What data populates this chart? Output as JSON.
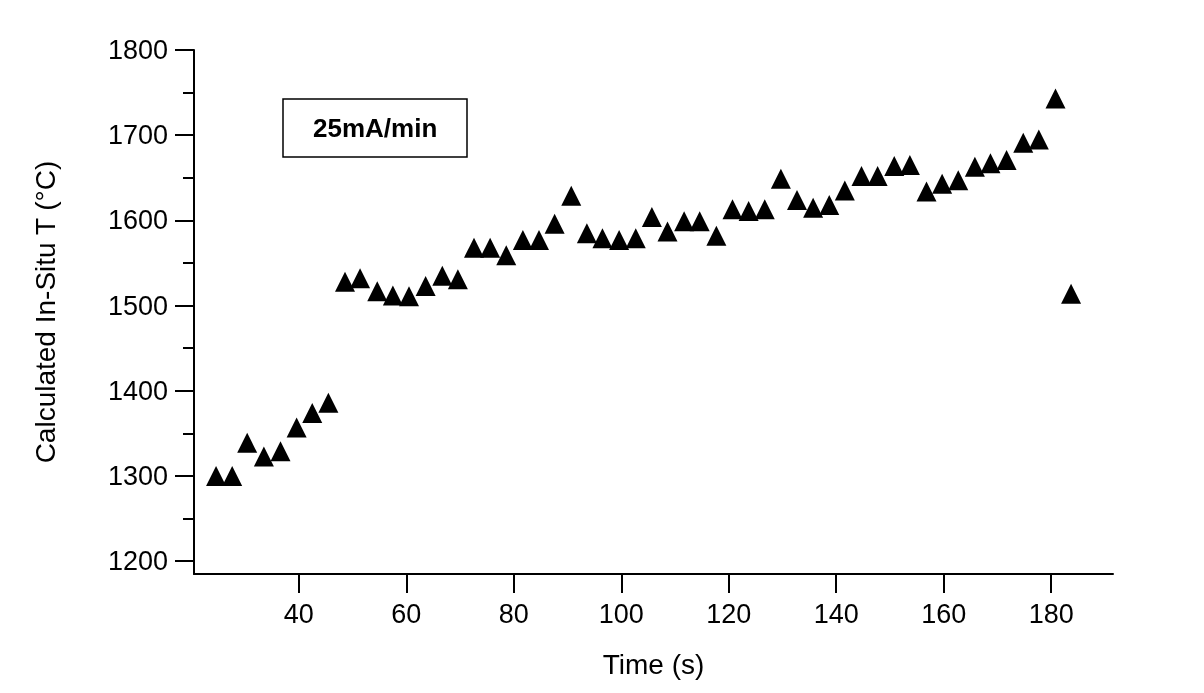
{
  "chart_data": {
    "type": "scatter",
    "xlabel": "Time (s)",
    "ylabel": "Calculated In-Situ T (°C)",
    "annotations": [
      "25mA/min"
    ],
    "x": [
      24.6,
      27.6,
      30.4,
      33.5,
      36.6,
      39.6,
      42.5,
      45.5,
      48.6,
      51.4,
      54.6,
      57.5,
      60.5,
      63.6,
      66.7,
      69.6,
      72.6,
      75.6,
      78.6,
      81.7,
      84.7,
      87.6,
      90.7,
      93.6,
      96.5,
      99.6,
      102.7,
      105.7,
      108.6,
      111.7,
      114.6,
      117.7,
      120.7,
      123.7,
      126.7,
      129.7,
      132.7,
      135.7,
      138.7,
      141.6,
      144.7,
      147.7,
      150.8,
      153.7,
      156.8,
      159.7,
      162.7,
      165.8,
      168.7,
      171.7,
      174.8,
      177.7,
      180.8,
      183.7
    ],
    "values": [
      1300,
      1300,
      1339,
      1323,
      1329,
      1357,
      1374,
      1386,
      1528,
      1532,
      1517,
      1512,
      1511,
      1523,
      1535,
      1531,
      1568,
      1568,
      1559,
      1577,
      1577,
      1596,
      1629,
      1585,
      1579,
      1577,
      1579,
      1604,
      1587,
      1599,
      1599,
      1582,
      1613,
      1611,
      1613,
      1649,
      1624,
      1615,
      1618,
      1635,
      1652,
      1652,
      1664,
      1665,
      1634,
      1643,
      1647,
      1663,
      1667,
      1671,
      1691,
      1695,
      1743,
      1514
    ],
    "color": "#000000",
    "marker": "triangle",
    "grid": false,
    "xlim": [
      20.5,
      191.5
    ],
    "xticks": [
      40,
      60,
      80,
      100,
      120,
      140,
      160,
      180
    ],
    "ylim": [
      1185,
      1800
    ],
    "yticks": [
      1200,
      {
        "value": 1250,
        "label": null
      },
      1300,
      {
        "value": 1350,
        "label": null
      },
      1400,
      {
        "value": 1450,
        "label": null
      },
      1500,
      {
        "value": 1550,
        "label": null
      },
      1600,
      {
        "value": 1650,
        "label": null
      },
      1700,
      {
        "value": 1750,
        "label": null
      },
      1800
    ]
  }
}
